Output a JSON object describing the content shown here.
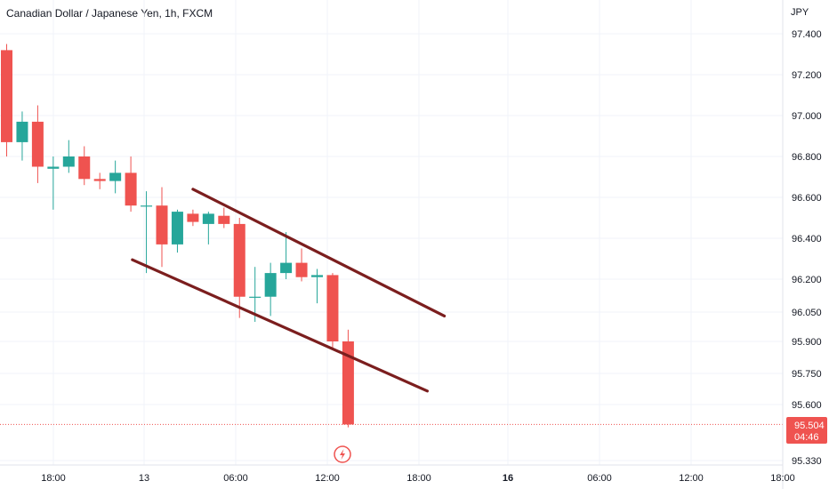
{
  "header": {
    "title": "Canadian Dollar / Japanese Yen, 1h, FXCM"
  },
  "colors": {
    "up": "#26a69a",
    "down": "#ef5350",
    "channel": "#7b1e1e",
    "grid": "#f0f3fa",
    "badge": "#ef5350"
  },
  "price_badge": {
    "price": "95.504",
    "countdown": "04:46"
  },
  "event_marker": {
    "icon": "lightning-icon"
  },
  "chart_data": {
    "type": "candlestick",
    "currency": "JPY",
    "y_ticks": [
      "97.400",
      "97.200",
      "97.000",
      "96.800",
      "96.600",
      "96.400",
      "96.200",
      "96.050",
      "95.900",
      "95.750",
      "95.600",
      "95.330"
    ],
    "x_ticks": [
      {
        "label": "18:00",
        "bold": false
      },
      {
        "label": "13",
        "bold": false
      },
      {
        "label": "06:00",
        "bold": false
      },
      {
        "label": "12:00",
        "bold": false
      },
      {
        "label": "18:00",
        "bold": false
      },
      {
        "label": "16",
        "bold": true
      },
      {
        "label": "06:00",
        "bold": false
      },
      {
        "label": "12:00",
        "bold": false
      },
      {
        "label": "18:00",
        "bold": false
      }
    ],
    "last_price": 95.504,
    "candles": [
      {
        "o": 97.32,
        "h": 97.35,
        "l": 96.8,
        "c": 96.87
      },
      {
        "o": 96.87,
        "h": 97.02,
        "l": 96.78,
        "c": 96.97
      },
      {
        "o": 96.97,
        "h": 97.05,
        "l": 96.67,
        "c": 96.75
      },
      {
        "o": 96.74,
        "h": 96.8,
        "l": 96.54,
        "c": 96.75
      },
      {
        "o": 96.75,
        "h": 96.88,
        "l": 96.72,
        "c": 96.8
      },
      {
        "o": 96.8,
        "h": 96.85,
        "l": 96.66,
        "c": 96.69
      },
      {
        "o": 96.69,
        "h": 96.72,
        "l": 96.64,
        "c": 96.68
      },
      {
        "o": 96.68,
        "h": 96.78,
        "l": 96.62,
        "c": 96.72
      },
      {
        "o": 96.72,
        "h": 96.8,
        "l": 96.53,
        "c": 96.56
      },
      {
        "o": 96.56,
        "h": 96.63,
        "l": 96.23,
        "c": 96.56
      },
      {
        "o": 96.56,
        "h": 96.65,
        "l": 96.26,
        "c": 96.37
      },
      {
        "o": 96.37,
        "h": 96.54,
        "l": 96.33,
        "c": 96.53
      },
      {
        "o": 96.52,
        "h": 96.54,
        "l": 96.46,
        "c": 96.48
      },
      {
        "o": 96.47,
        "h": 96.53,
        "l": 96.37,
        "c": 96.52
      },
      {
        "o": 96.51,
        "h": 96.55,
        "l": 96.45,
        "c": 96.47
      },
      {
        "o": 96.47,
        "h": 96.5,
        "l": 96.02,
        "c": 96.12
      },
      {
        "o": 96.12,
        "h": 96.26,
        "l": 96.0,
        "c": 96.12
      },
      {
        "o": 96.12,
        "h": 96.28,
        "l": 96.03,
        "c": 96.23
      },
      {
        "o": 96.23,
        "h": 96.43,
        "l": 96.2,
        "c": 96.28
      },
      {
        "o": 96.28,
        "h": 96.35,
        "l": 96.19,
        "c": 96.21
      },
      {
        "o": 96.21,
        "h": 96.25,
        "l": 96.09,
        "c": 96.22
      },
      {
        "o": 96.22,
        "h": 96.23,
        "l": 95.87,
        "c": 95.9
      },
      {
        "o": 95.9,
        "h": 95.96,
        "l": 95.49,
        "c": 95.504
      }
    ],
    "trendlines": [
      {
        "name": "upper-channel",
        "from": {
          "bar": 12.0,
          "price": 96.64
        },
        "to": {
          "bar": 28.2,
          "price": 96.03
        }
      },
      {
        "name": "lower-channel",
        "from": {
          "bar": 8.1,
          "price": 96.295
        },
        "to": {
          "bar": 27.1,
          "price": 95.665
        }
      }
    ]
  }
}
